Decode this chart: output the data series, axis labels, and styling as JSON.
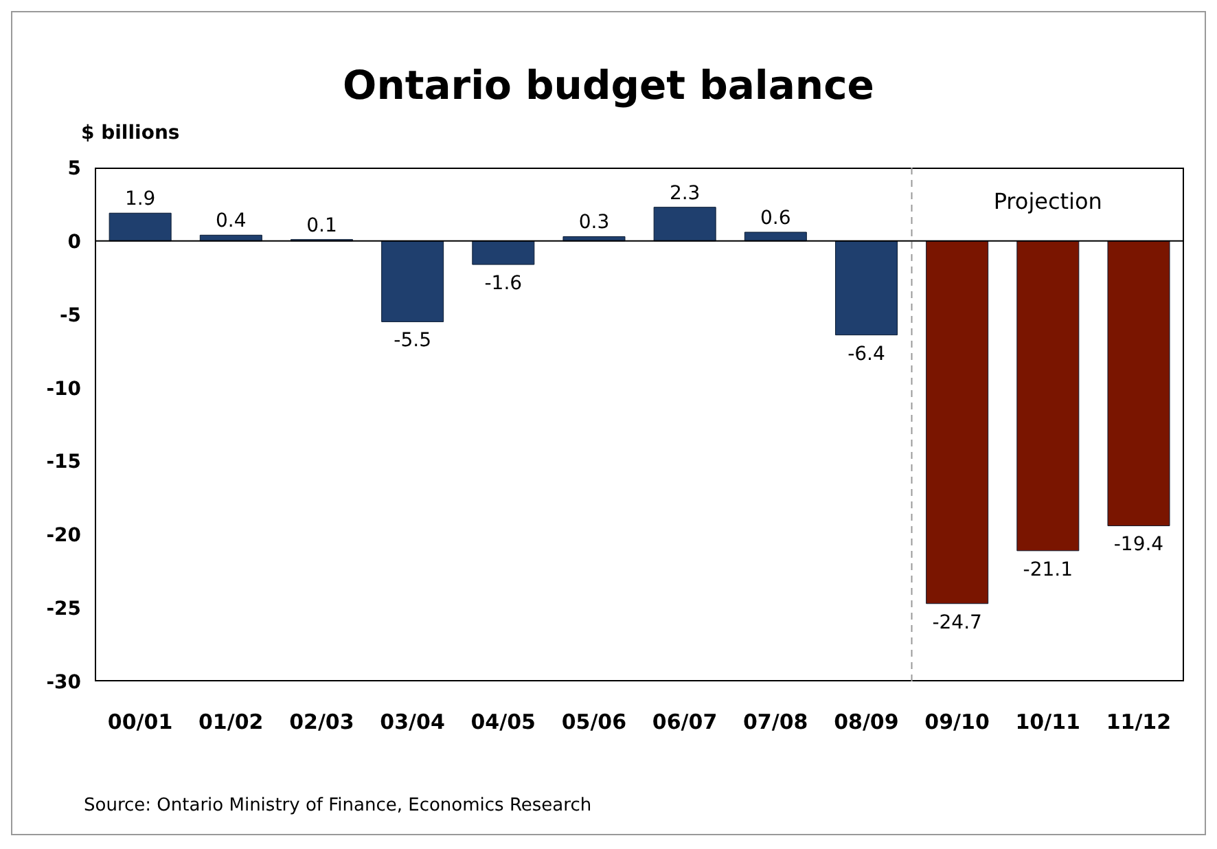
{
  "chart_data": {
    "type": "bar",
    "title": "Ontario budget balance",
    "ylabel": "$ billions",
    "categories": [
      "00/01",
      "01/02",
      "02/03",
      "03/04",
      "04/05",
      "05/06",
      "06/07",
      "07/08",
      "08/09",
      "09/10",
      "10/11",
      "11/12"
    ],
    "values": [
      1.9,
      0.4,
      0.1,
      -5.5,
      -1.6,
      0.3,
      2.3,
      0.6,
      -6.4,
      -24.7,
      -21.1,
      -19.4
    ],
    "colors": [
      "#1f3f6e",
      "#1f3f6e",
      "#1f3f6e",
      "#1f3f6e",
      "#1f3f6e",
      "#1f3f6e",
      "#1f3f6e",
      "#1f3f6e",
      "#1f3f6e",
      "#7a1500",
      "#7a1500",
      "#7a1500"
    ],
    "ylim": [
      -30,
      5
    ],
    "yticks": [
      -30,
      -25,
      -20,
      -15,
      -10,
      -5,
      0,
      5
    ],
    "grid": false,
    "data_labels": true,
    "ref_lines": [
      {
        "axis": "x",
        "value": "09/10",
        "color": "#999999",
        "line_style": "dashed"
      }
    ],
    "annotations": [
      "Projection",
      "Source: Ontario Ministry of Finance, Economics Research"
    ]
  }
}
